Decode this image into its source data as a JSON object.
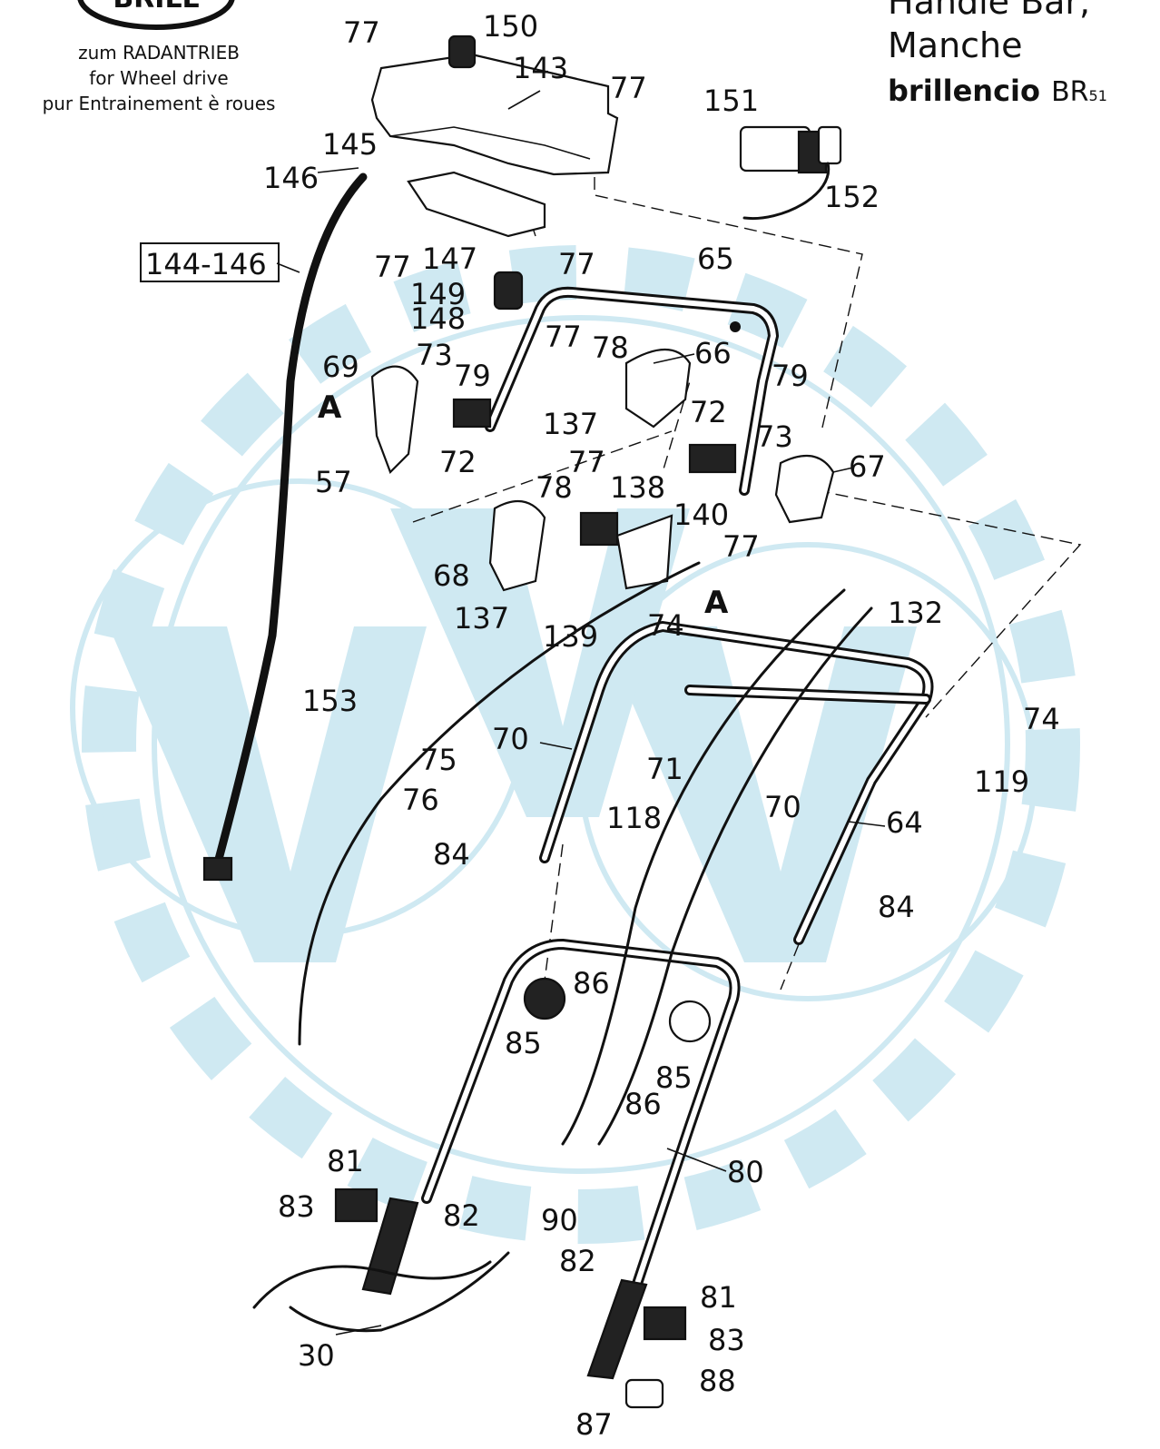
{
  "header": {
    "logo_text": "BRILL",
    "drive_note_lines": [
      "zum RADANTRIEB",
      "for Wheel drive",
      "pur Entrainement è roues"
    ],
    "title_lines": [
      "Handle Bar,",
      "Manche"
    ],
    "brand": "brillencio",
    "model_prefix": "BR",
    "model_number": "51"
  },
  "colors": {
    "watermark": "#cfe9f2",
    "ink": "#111111"
  },
  "diagram": {
    "detail_marker": "A",
    "boxed_label": "144-146",
    "part_labels": [
      "77",
      "150",
      "143",
      "77",
      "151",
      "152",
      "145",
      "146",
      "144-146",
      "147",
      "77",
      "77",
      "65",
      "149",
      "148",
      "77",
      "78",
      "66",
      "69",
      "73",
      "79",
      "A",
      "137",
      "79",
      "72",
      "73",
      "67",
      "72",
      "57",
      "77",
      "138",
      "78",
      "140",
      "77",
      "68",
      "137",
      "139",
      "A",
      "132",
      "74",
      "74",
      "153",
      "70",
      "119",
      "75",
      "71",
      "76",
      "118",
      "70",
      "64",
      "84",
      "84",
      "86",
      "85",
      "85",
      "86",
      "80",
      "81",
      "83",
      "82",
      "90",
      "82",
      "81",
      "83",
      "30",
      "88",
      "87"
    ]
  }
}
